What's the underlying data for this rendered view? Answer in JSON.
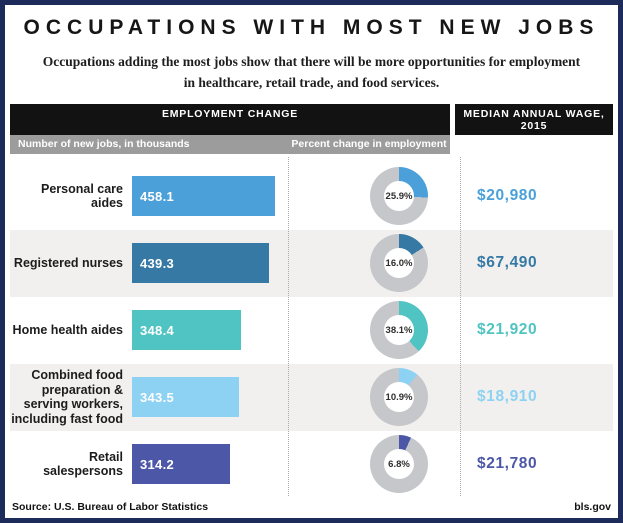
{
  "title": "OCCUPATIONS WITH MOST NEW JOBS",
  "subtitle": "Occupations adding the most jobs show that there will be more opportunities for employment in healthcare, retail trade, and food services.",
  "header": {
    "employment_change": "EMPLOYMENT CHANGE",
    "median_wage": "MEDIAN ANNUAL WAGE, 2015",
    "jobs_column": "Number of new jobs, in thousands",
    "percent_column": "Percent change in employment"
  },
  "footer": {
    "source": "Source: U.S. Bureau of Labor Statistics",
    "site": "bls.gov"
  },
  "colors": {
    "border_navy": "#1d2b5b",
    "header_black": "#121212",
    "header_gray": "#9c9c9c",
    "donut_ring_gray": "#c5c7ca",
    "row_alt_bg": "#f1f0ee"
  },
  "chart_data": {
    "type": "bar",
    "description": "Horizontal bar + donut table: occupations adding most new jobs, 2014-24 projections",
    "columns": [
      "Occupation",
      "Number of new jobs, in thousands",
      "Percent change in employment",
      "Median annual wage, 2015"
    ],
    "bar_axis_max": 458.1,
    "rows": [
      {
        "occupation": "Personal care aides",
        "new_jobs_thousands": 458.1,
        "percent_change": 25.9,
        "median_wage": "$20,980",
        "color": "#4ba0d9"
      },
      {
        "occupation": "Registered nurses",
        "new_jobs_thousands": 439.3,
        "percent_change": 16.0,
        "median_wage": "$67,490",
        "color": "#3579a4"
      },
      {
        "occupation": "Home health aides",
        "new_jobs_thousands": 348.4,
        "percent_change": 38.1,
        "median_wage": "$21,920",
        "color": "#4fc4c2"
      },
      {
        "occupation": "Combined food preparation & serving workers, including fast food",
        "new_jobs_thousands": 343.5,
        "percent_change": 10.9,
        "median_wage": "$18,910",
        "color": "#8dd2f2"
      },
      {
        "occupation": "Retail salespersons",
        "new_jobs_thousands": 314.2,
        "percent_change": 6.8,
        "median_wage": "$21,780",
        "color": "#4d57a7"
      }
    ]
  }
}
